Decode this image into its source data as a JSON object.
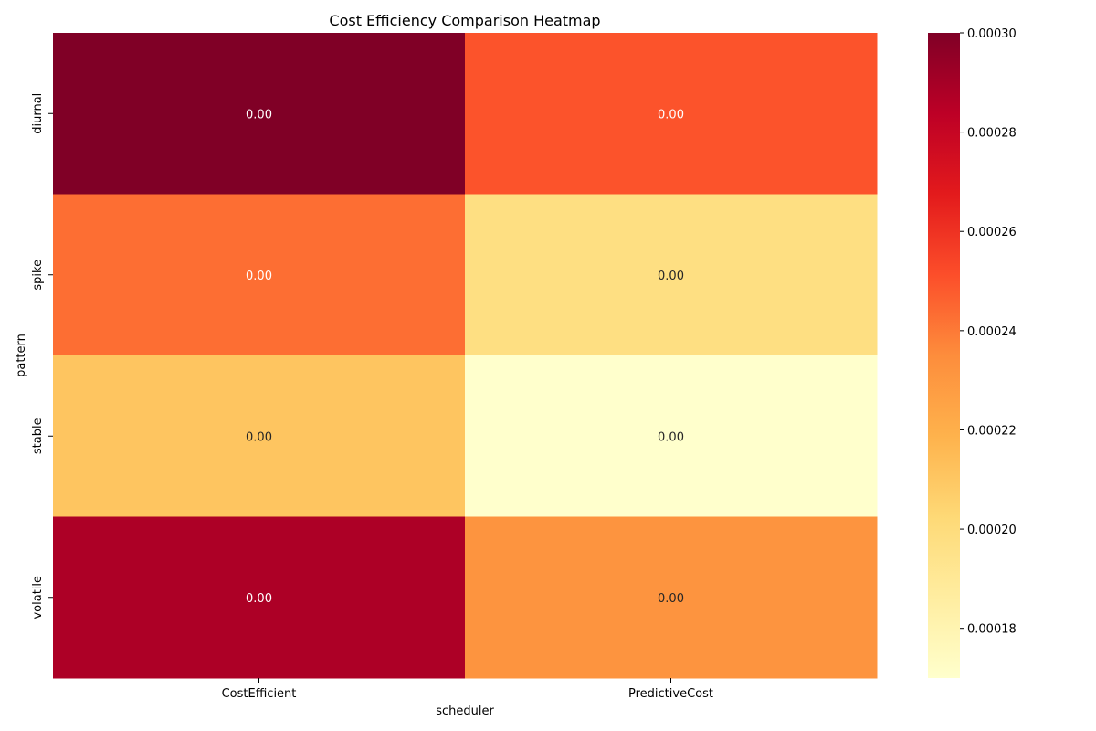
{
  "chart_data": {
    "type": "heatmap",
    "title": "Cost Efficiency Comparison Heatmap",
    "xlabel": "scheduler",
    "ylabel": "pattern",
    "x_categories": [
      "CostEfficient",
      "PredictiveCost"
    ],
    "y_categories": [
      "diurnal",
      "spike",
      "stable",
      "volatile"
    ],
    "values": [
      [
        0.0003,
        0.00025
      ],
      [
        0.000243,
        0.000198
      ],
      [
        0.000211,
        0.00017
      ],
      [
        0.000288,
        0.000232
      ]
    ],
    "cell_labels": [
      [
        "0.00",
        "0.00"
      ],
      [
        "0.00",
        "0.00"
      ],
      [
        "0.00",
        "0.00"
      ],
      [
        "0.00",
        "0.00"
      ]
    ],
    "colorbar": {
      "vmin": 0.00017,
      "vmax": 0.0003,
      "ticks": [
        0.00018,
        0.0002,
        0.00022,
        0.00024,
        0.00026,
        0.00028,
        0.0003
      ],
      "tick_labels": [
        "0.00018",
        "0.00020",
        "0.00022",
        "0.00024",
        "0.00026",
        "0.00028",
        "0.00030"
      ]
    },
    "colormap": [
      "#ffffcc",
      "#ffeda0",
      "#fed976",
      "#feb24c",
      "#fd8d3c",
      "#fc4e2a",
      "#e31a1c",
      "#bd0026",
      "#800026"
    ]
  }
}
